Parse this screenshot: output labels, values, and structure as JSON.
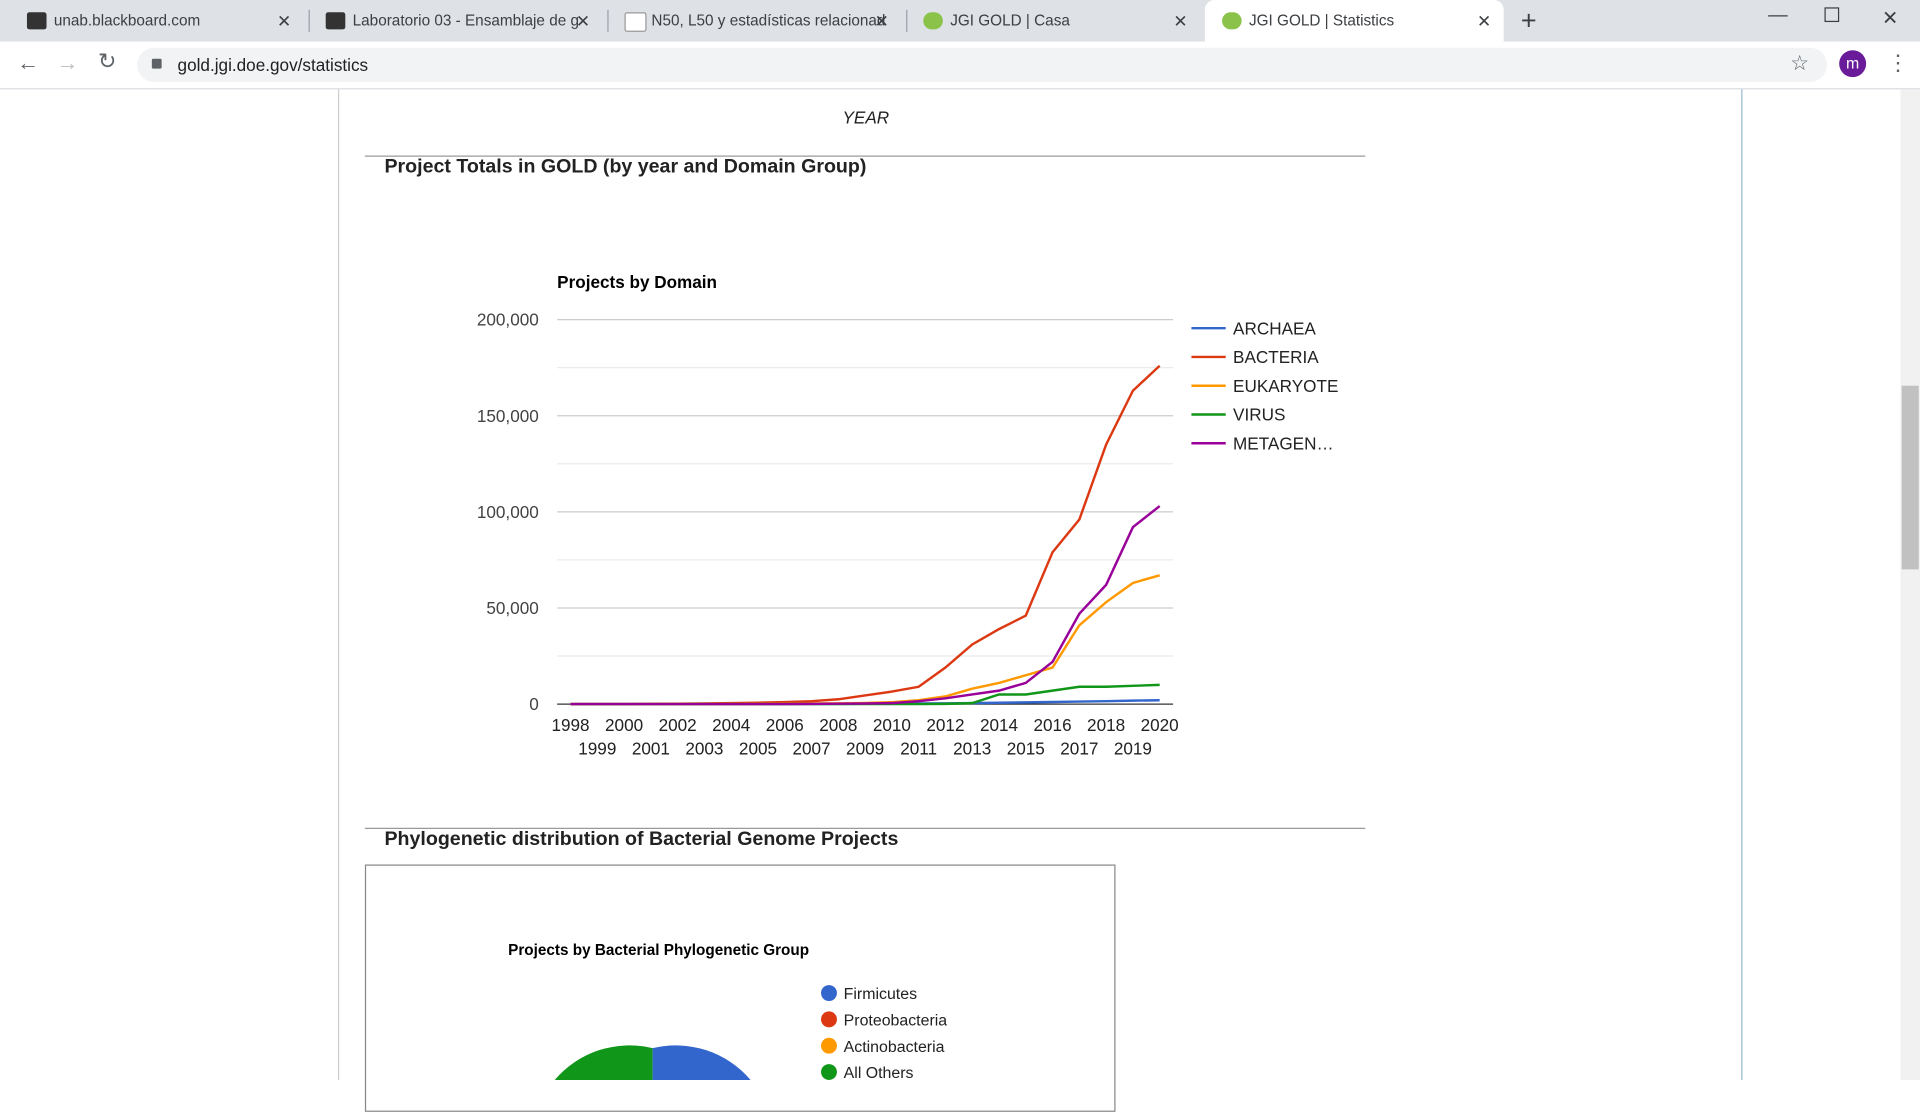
{
  "browser": {
    "tabs": [
      {
        "title": "unab.blackboard.com"
      },
      {
        "title": "Laboratorio 03 - Ensamblaje de g"
      },
      {
        "title": "N50, L50 y estadísticas relacionad"
      },
      {
        "title": "JGI GOLD | Casa"
      },
      {
        "title": "JGI GOLD | Statistics"
      }
    ],
    "url": "gold.jgi.doe.gov/statistics",
    "profile_initial": "m"
  },
  "page": {
    "previous_axis_label": "YEAR",
    "section_1_heading": "Project Totals in GOLD (by year and Domain Group)",
    "section_2_heading": "Phylogenetic distribution of Bacterial Genome Projects"
  },
  "chart_data": [
    {
      "type": "line",
      "title": "Projects by Domain",
      "x": [
        1998,
        1999,
        2000,
        2001,
        2002,
        2003,
        2004,
        2005,
        2006,
        2007,
        2008,
        2009,
        2010,
        2011,
        2012,
        2013,
        2014,
        2015,
        2016,
        2017,
        2018,
        2019,
        2020
      ],
      "xlim": [
        1997.5,
        2020.5
      ],
      "xticks": [
        1998,
        1999,
        2000,
        2001,
        2002,
        2003,
        2004,
        2005,
        2006,
        2007,
        2008,
        2009,
        2010,
        2011,
        2012,
        2013,
        2014,
        2015,
        2016,
        2017,
        2018,
        2019,
        2020
      ],
      "ylim": [
        0,
        200000
      ],
      "yticks": [
        0,
        {
          "value": 50000,
          "label": "50,000"
        },
        {
          "value": 100000,
          "label": "100,000"
        },
        {
          "value": 150000,
          "label": "150,000"
        },
        {
          "value": 200000,
          "label": "200,000"
        }
      ],
      "minor_gridlines": [
        25000,
        75000,
        125000,
        175000
      ],
      "grid": true,
      "legend": "right",
      "series": [
        {
          "name": "ARCHAEA",
          "color": "#3366cc",
          "values": [
            0,
            0,
            0,
            0,
            0,
            0,
            0,
            50,
            50,
            100,
            100,
            150,
            200,
            300,
            400,
            500,
            700,
            900,
            1100,
            1300,
            1500,
            1800,
            2000
          ]
        },
        {
          "name": "BACTERIA",
          "color": "#dc3912",
          "values": [
            0,
            0,
            0,
            100,
            200,
            300,
            500,
            700,
            1000,
            1500,
            2500,
            4500,
            6500,
            9000,
            19000,
            31000,
            39000,
            46000,
            79000,
            96000,
            135000,
            163000,
            176000
          ]
        },
        {
          "name": "EUKARYOTE",
          "color": "#ff9900",
          "values": [
            0,
            0,
            0,
            0,
            0,
            0,
            100,
            100,
            200,
            300,
            400,
            600,
            1000,
            2000,
            4000,
            8000,
            11000,
            15000,
            19000,
            41000,
            53000,
            63000,
            67000
          ]
        },
        {
          "name": "VIRUS",
          "color": "#109618",
          "values": [
            0,
            0,
            0,
            0,
            0,
            0,
            0,
            0,
            0,
            0,
            0,
            0,
            0,
            0,
            100,
            500,
            5000,
            5000,
            7000,
            9000,
            9000,
            9500,
            10000
          ]
        },
        {
          "name": "METAGEN…",
          "color": "#990099",
          "values": [
            0,
            0,
            0,
            0,
            0,
            0,
            0,
            0,
            0,
            100,
            200,
            300,
            500,
            1500,
            3000,
            5000,
            7000,
            11000,
            22000,
            47000,
            62000,
            92000,
            103000
          ]
        }
      ]
    },
    {
      "type": "pie",
      "title": "Projects by Bacterial Phylogenetic Group",
      "legend": "right",
      "series": [
        {
          "name": "Firmicutes",
          "color": "#3366cc"
        },
        {
          "name": "Proteobacteria",
          "color": "#dc3912"
        },
        {
          "name": "Actinobacteria",
          "color": "#ff9900"
        },
        {
          "name": "All Others",
          "color": "#109618"
        }
      ]
    }
  ]
}
